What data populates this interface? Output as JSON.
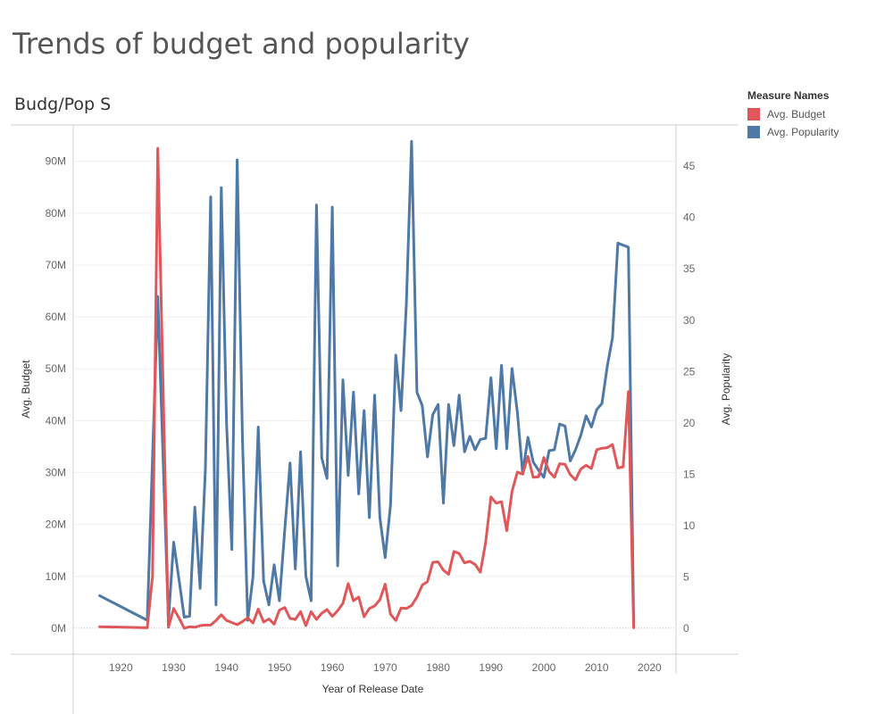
{
  "dashboard": {
    "title": "Trends of budget and popularity"
  },
  "sheet": {
    "title": "Budg/Pop S"
  },
  "legend": {
    "title": "Measure Names",
    "items": [
      {
        "label": "Avg. Budget",
        "color": "#e05759"
      },
      {
        "label": "Avg. Popularity",
        "color": "#4e79a7"
      }
    ]
  },
  "chart_data": {
    "type": "line",
    "xlabel": "Year of Release Date",
    "ylabel_left": "Avg. Budget",
    "ylabel_right": "Avg. Popularity",
    "x_range": [
      1911,
      2025
    ],
    "x_ticks": [
      1920,
      1930,
      1940,
      1950,
      1960,
      1970,
      1980,
      1990,
      2000,
      2010,
      2020
    ],
    "y_left_range": [
      -5000000,
      97000000
    ],
    "y_left_ticks": [
      0,
      10000000,
      20000000,
      30000000,
      40000000,
      50000000,
      60000000,
      70000000,
      80000000,
      90000000
    ],
    "y_left_tick_labels": [
      "0M",
      "10M",
      "20M",
      "30M",
      "40M",
      "50M",
      "60M",
      "70M",
      "80M",
      "90M"
    ],
    "y_right_range": [
      -2.5,
      49
    ],
    "y_right_ticks": [
      0,
      5,
      10,
      15,
      20,
      25,
      30,
      35,
      40,
      45
    ],
    "grid": true,
    "legend_position": "right",
    "series": [
      {
        "name": "Avg. Budget",
        "axis": "left",
        "color": "#e05759",
        "points": [
          [
            1916,
            300000
          ],
          [
            1925,
            100000
          ],
          [
            1926,
            10000000
          ],
          [
            1927,
            92500000
          ],
          [
            1929,
            200000
          ],
          [
            1930,
            3800000
          ],
          [
            1931,
            2000000
          ],
          [
            1932,
            0
          ],
          [
            1933,
            300000
          ],
          [
            1934,
            200000
          ],
          [
            1935,
            500000
          ],
          [
            1936,
            600000
          ],
          [
            1937,
            600000
          ],
          [
            1938,
            1500000
          ],
          [
            1939,
            2600000
          ],
          [
            1940,
            1500000
          ],
          [
            1941,
            1100000
          ],
          [
            1942,
            700000
          ],
          [
            1943,
            1300000
          ],
          [
            1944,
            2000000
          ],
          [
            1945,
            1000000
          ],
          [
            1946,
            3700000
          ],
          [
            1947,
            1200000
          ],
          [
            1948,
            1800000
          ],
          [
            1949,
            800000
          ],
          [
            1950,
            3500000
          ],
          [
            1951,
            4000000
          ],
          [
            1952,
            1900000
          ],
          [
            1953,
            1700000
          ],
          [
            1954,
            3200000
          ],
          [
            1955,
            500000
          ],
          [
            1956,
            3200000
          ],
          [
            1957,
            1700000
          ],
          [
            1958,
            2900000
          ],
          [
            1959,
            3600000
          ],
          [
            1960,
            2300000
          ],
          [
            1961,
            3400000
          ],
          [
            1962,
            4800000
          ],
          [
            1963,
            8600000
          ],
          [
            1964,
            5300000
          ],
          [
            1965,
            6000000
          ],
          [
            1966,
            2200000
          ],
          [
            1967,
            3800000
          ],
          [
            1968,
            4300000
          ],
          [
            1969,
            5500000
          ],
          [
            1970,
            8500000
          ],
          [
            1971,
            2700000
          ],
          [
            1972,
            1500000
          ],
          [
            1973,
            3900000
          ],
          [
            1974,
            3800000
          ],
          [
            1975,
            4400000
          ],
          [
            1976,
            6000000
          ],
          [
            1977,
            8300000
          ],
          [
            1978,
            9000000
          ],
          [
            1979,
            12700000
          ],
          [
            1980,
            12800000
          ],
          [
            1981,
            11200000
          ],
          [
            1982,
            10400000
          ],
          [
            1983,
            14800000
          ],
          [
            1984,
            14400000
          ],
          [
            1985,
            12600000
          ],
          [
            1986,
            12900000
          ],
          [
            1987,
            12300000
          ],
          [
            1988,
            10800000
          ],
          [
            1989,
            16500000
          ],
          [
            1990,
            25300000
          ],
          [
            1991,
            24100000
          ],
          [
            1992,
            24400000
          ],
          [
            1993,
            18800000
          ],
          [
            1994,
            26400000
          ],
          [
            1995,
            30100000
          ],
          [
            1996,
            29700000
          ],
          [
            1997,
            33100000
          ],
          [
            1998,
            29100000
          ],
          [
            1999,
            29200000
          ],
          [
            2000,
            32900000
          ],
          [
            2001,
            30200000
          ],
          [
            2002,
            29100000
          ],
          [
            2003,
            31700000
          ],
          [
            2004,
            31600000
          ],
          [
            2005,
            29600000
          ],
          [
            2006,
            28600000
          ],
          [
            2007,
            30700000
          ],
          [
            2008,
            31400000
          ],
          [
            2009,
            30800000
          ],
          [
            2010,
            34400000
          ],
          [
            2011,
            34700000
          ],
          [
            2012,
            34800000
          ],
          [
            2013,
            35400000
          ],
          [
            2014,
            30900000
          ],
          [
            2015,
            31100000
          ],
          [
            2016,
            45600000
          ],
          [
            2017,
            100000
          ]
        ]
      },
      {
        "name": "Avg. Popularity",
        "axis": "right",
        "color": "#4e79a7",
        "points": [
          [
            1916,
            3.2
          ],
          [
            1925,
            0.8
          ],
          [
            1927,
            32.3
          ],
          [
            1929,
            0.8
          ],
          [
            1930,
            8.4
          ],
          [
            1931,
            4.8
          ],
          [
            1932,
            1.1
          ],
          [
            1933,
            1.2
          ],
          [
            1934,
            11.8
          ],
          [
            1935,
            3.9
          ],
          [
            1936,
            15.5
          ],
          [
            1937,
            42.0
          ],
          [
            1938,
            2.3
          ],
          [
            1939,
            42.9
          ],
          [
            1940,
            20.0
          ],
          [
            1941,
            7.7
          ],
          [
            1942,
            45.6
          ],
          [
            1943,
            18.5
          ],
          [
            1944,
            0.8
          ],
          [
            1945,
            5.0
          ],
          [
            1946,
            19.6
          ],
          [
            1947,
            4.6
          ],
          [
            1948,
            2.3
          ],
          [
            1949,
            6.2
          ],
          [
            1950,
            2.7
          ],
          [
            1951,
            9.5
          ],
          [
            1952,
            16.1
          ],
          [
            1953,
            5.8
          ],
          [
            1954,
            17.2
          ],
          [
            1955,
            5.1
          ],
          [
            1956,
            2.7
          ],
          [
            1957,
            41.2
          ],
          [
            1958,
            16.6
          ],
          [
            1959,
            14.6
          ],
          [
            1960,
            41.0
          ],
          [
            1961,
            6.1
          ],
          [
            1962,
            24.2
          ],
          [
            1963,
            14.9
          ],
          [
            1964,
            23.0
          ],
          [
            1965,
            13.1
          ],
          [
            1966,
            21.2
          ],
          [
            1967,
            10.8
          ],
          [
            1968,
            22.7
          ],
          [
            1969,
            10.8
          ],
          [
            1970,
            6.9
          ],
          [
            1971,
            12.0
          ],
          [
            1972,
            26.6
          ],
          [
            1973,
            21.2
          ],
          [
            1974,
            31.5
          ],
          [
            1975,
            47.4
          ],
          [
            1976,
            23.0
          ],
          [
            1977,
            21.7
          ],
          [
            1978,
            16.7
          ],
          [
            1979,
            20.8
          ],
          [
            1980,
            21.8
          ],
          [
            1981,
            12.2
          ],
          [
            1982,
            21.8
          ],
          [
            1983,
            17.8
          ],
          [
            1984,
            22.7
          ],
          [
            1985,
            17.2
          ],
          [
            1986,
            18.7
          ],
          [
            1987,
            17.4
          ],
          [
            1988,
            18.4
          ],
          [
            1989,
            18.5
          ],
          [
            1990,
            24.4
          ],
          [
            1991,
            17.5
          ],
          [
            1992,
            25.6
          ],
          [
            1993,
            17.5
          ],
          [
            1994,
            25.3
          ],
          [
            1995,
            21.0
          ],
          [
            1996,
            15.1
          ],
          [
            1997,
            18.6
          ],
          [
            1998,
            16.2
          ],
          [
            1999,
            15.4
          ],
          [
            2000,
            14.7
          ],
          [
            2001,
            17.3
          ],
          [
            2002,
            17.4
          ],
          [
            2003,
            19.9
          ],
          [
            2004,
            19.7
          ],
          [
            2005,
            16.3
          ],
          [
            2006,
            17.4
          ],
          [
            2007,
            18.8
          ],
          [
            2008,
            20.7
          ],
          [
            2009,
            19.6
          ],
          [
            2010,
            21.3
          ],
          [
            2011,
            21.9
          ],
          [
            2012,
            25.5
          ],
          [
            2013,
            28.3
          ],
          [
            2014,
            37.5
          ],
          [
            2015,
            37.3
          ],
          [
            2016,
            37.1
          ],
          [
            2017,
            0.6
          ]
        ]
      }
    ]
  }
}
